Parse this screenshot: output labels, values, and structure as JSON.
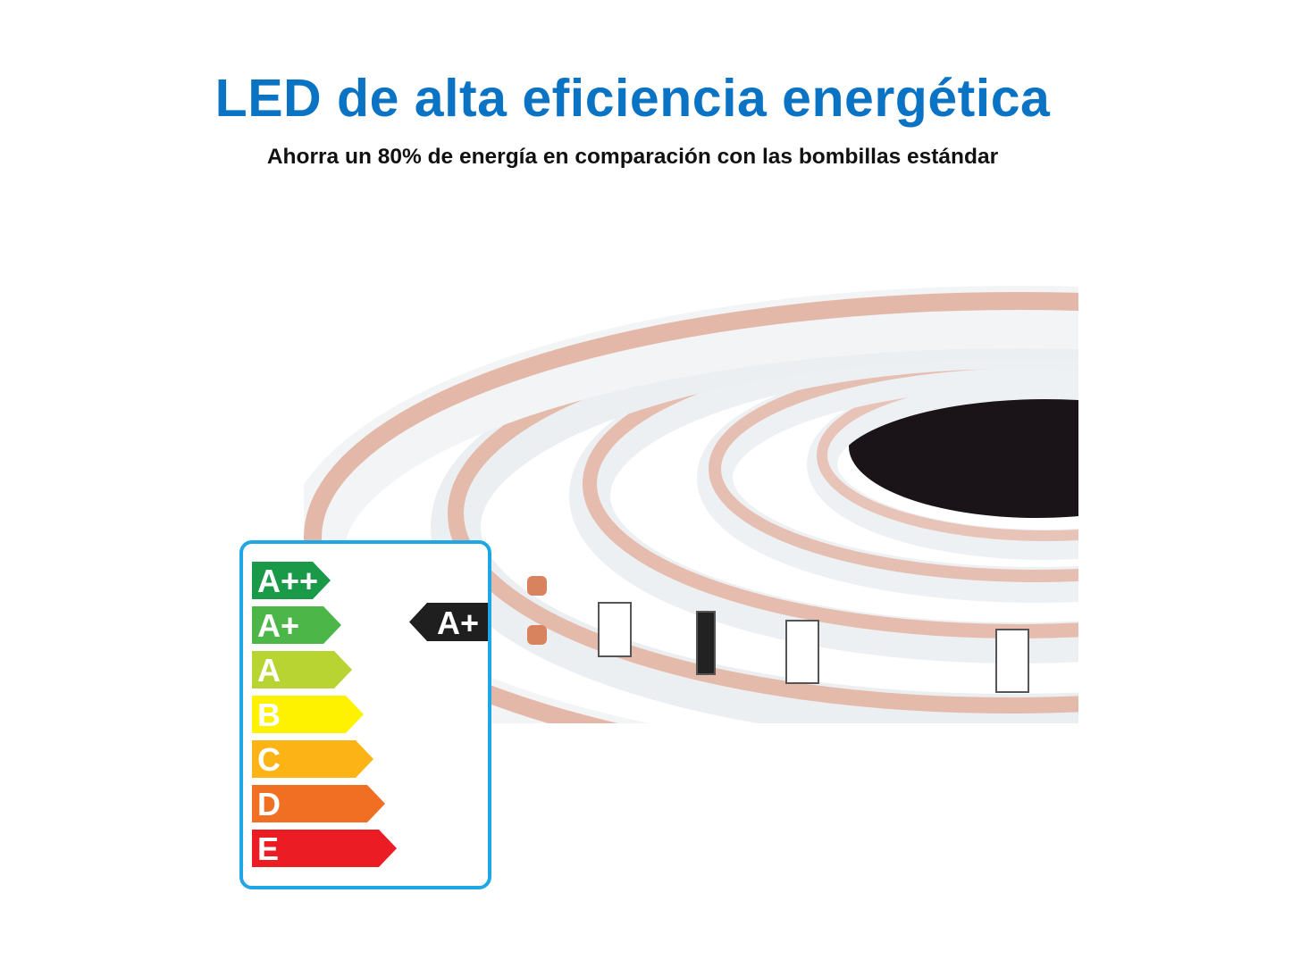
{
  "header": {
    "title": "LED de alta eficiencia energética",
    "subtitle": "Ahorra un 80% de energía en comparación con las bombillas estándar"
  },
  "energy_label": {
    "classes": [
      {
        "label": "A++",
        "color": "#1a9a48"
      },
      {
        "label": "A+",
        "color": "#4cb748"
      },
      {
        "label": "A",
        "color": "#b8d433"
      },
      {
        "label": "B",
        "color": "#fff200"
      },
      {
        "label": "C",
        "color": "#fbb316"
      },
      {
        "label": "D",
        "color": "#f16f22"
      },
      {
        "label": "E",
        "color": "#ec1c24"
      }
    ],
    "rating": "A+",
    "border_color": "#1ea7e4"
  },
  "colors": {
    "title": "#0b73c4"
  }
}
